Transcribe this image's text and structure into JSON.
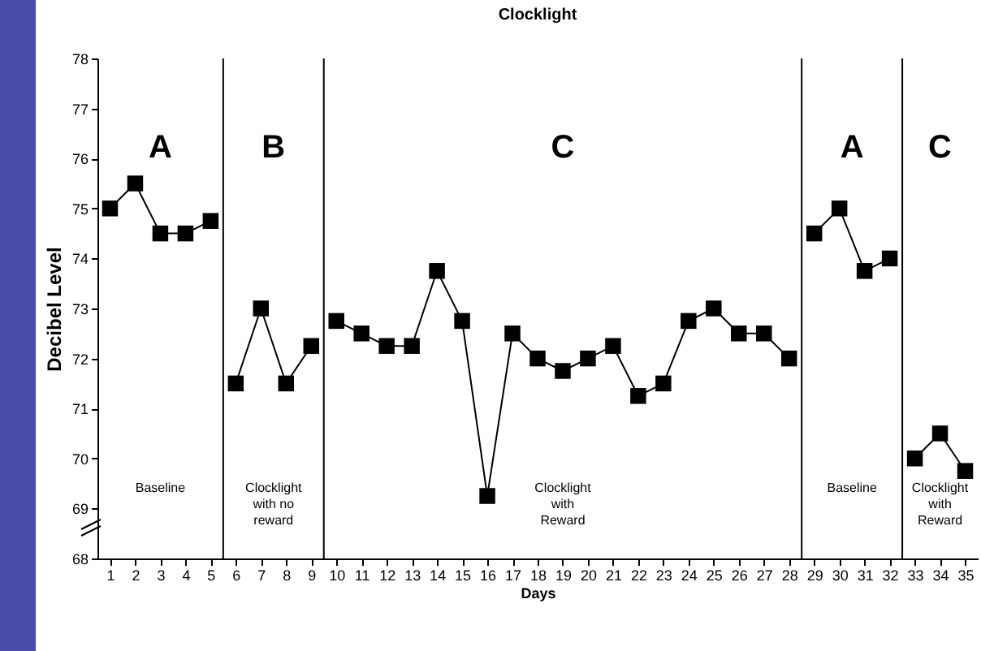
{
  "chart_data": {
    "type": "line",
    "title": "Clocklight",
    "xlabel": "Days",
    "ylabel": "Decibel Level",
    "xlim": [
      0.5,
      35.5
    ],
    "xticks": [
      1,
      2,
      3,
      4,
      5,
      6,
      7,
      8,
      9,
      10,
      11,
      12,
      13,
      14,
      15,
      16,
      17,
      18,
      19,
      20,
      21,
      22,
      23,
      24,
      25,
      26,
      27,
      28,
      29,
      30,
      31,
      32,
      33,
      34,
      35
    ],
    "ylim": [
      68,
      78
    ],
    "yticks": [
      68,
      69,
      70,
      71,
      72,
      73,
      74,
      75,
      76,
      77,
      78
    ],
    "marker": "square",
    "grid": false,
    "legend": false,
    "series": [
      {
        "color": "#000000",
        "x": [
          1,
          2,
          3,
          4,
          5
        ],
        "values": [
          75,
          75.5,
          74.5,
          74.5,
          74.75
        ]
      },
      {
        "color": "#000000",
        "x": [
          6,
          7,
          8,
          9
        ],
        "values": [
          71.5,
          73,
          71.5,
          72.25
        ]
      },
      {
        "color": "#000000",
        "x": [
          10,
          11,
          12,
          13,
          14,
          15,
          16,
          17,
          18,
          19,
          20,
          21,
          22,
          23,
          24,
          25,
          26,
          27,
          28
        ],
        "values": [
          72.75,
          72.5,
          72.25,
          72.25,
          73.75,
          72.75,
          69.25,
          72.5,
          72,
          71.75,
          72,
          72.25,
          71.25,
          71.5,
          72.75,
          73,
          72.5,
          72.5,
          72
        ]
      },
      {
        "color": "#000000",
        "x": [
          29,
          30,
          31,
          32
        ],
        "values": [
          74.5,
          75,
          73.75,
          74
        ]
      },
      {
        "color": "#000000",
        "x": [
          33,
          34,
          35
        ],
        "values": [
          70,
          70.5,
          69.75
        ]
      }
    ],
    "ref_lines": [
      {
        "axis": "x",
        "value": 5.5,
        "color": "#000000"
      },
      {
        "axis": "x",
        "value": 9.5,
        "color": "#000000"
      },
      {
        "axis": "x",
        "value": 28.5,
        "color": "#000000"
      },
      {
        "axis": "x",
        "value": 32.5,
        "color": "#000000"
      }
    ],
    "annotations": [
      "A",
      "B",
      "C",
      "A",
      "C",
      "Baseline",
      "Clocklight\nwith no\nreward",
      "Clocklight\nwith\nReward",
      "Baseline",
      "Clocklight\nwith\nReward"
    ]
  }
}
